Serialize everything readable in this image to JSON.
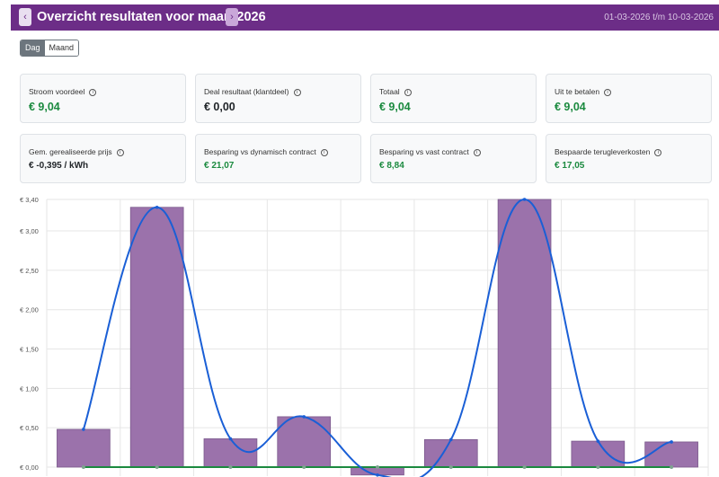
{
  "header": {
    "prev_icon": "‹",
    "next_icon": "›",
    "title": "Overzicht resultaten voor maart 2026",
    "date_range": "01-03-2026 t/m 10-03-2026"
  },
  "toggle": {
    "day_label": "Dag",
    "month_label": "Maand",
    "active": "Dag"
  },
  "cards_row1": [
    {
      "label": "Stroom voordeel",
      "value": "€ 9,04",
      "color": "#1b8a3f"
    },
    {
      "label": "Deal resultaat (klantdeel)",
      "value": "€ 0,00",
      "color": "#212529"
    },
    {
      "label": "Totaal",
      "value": "€ 9,04",
      "color": "#1b8a3f"
    },
    {
      "label": "Uit te betalen",
      "value": "€ 9,04",
      "color": "#1b8a3f"
    }
  ],
  "cards_row2": [
    {
      "label": "Gem. gerealiseerde prijs",
      "value": "€ -0,395 / kWh",
      "color": "#212529"
    },
    {
      "label": "Besparing vs dynamisch contract",
      "value": "€ 21,07",
      "color": "#1b8a3f"
    },
    {
      "label": "Besparing vs vast contract",
      "value": "€ 8,84",
      "color": "#1b8a3f"
    },
    {
      "label": "Bespaarde terugleverkosten",
      "value": "€ 17,05",
      "color": "#1b8a3f"
    }
  ],
  "info_icon": "info-circle-icon",
  "chart_data": {
    "type": "bar",
    "y_tick_labels": [
      "€ 0,00",
      "€ 0,50",
      "€ 1,00",
      "€ 1,50",
      "€ 2,00",
      "€ 2,50",
      "€ 3,00",
      "€ 3,40"
    ],
    "ylim": [
      0,
      3.4
    ],
    "categories_count": 9,
    "series": [
      {
        "type": "bar",
        "values": [
          0.48,
          3.3,
          0.36,
          0.64,
          -0.1,
          0.35,
          3.4,
          0.33,
          0.32
        ],
        "color": "#9b72ab"
      },
      {
        "type": "line",
        "values": [
          0.48,
          3.3,
          0.36,
          0.64,
          -0.1,
          0.35,
          3.4,
          0.33,
          0.32
        ],
        "color": "#1a5fd6"
      },
      {
        "type": "line",
        "values": [
          0,
          0,
          0,
          0,
          0,
          0,
          0,
          0,
          0
        ],
        "color": "#1b8a3f"
      }
    ],
    "grid": true
  }
}
